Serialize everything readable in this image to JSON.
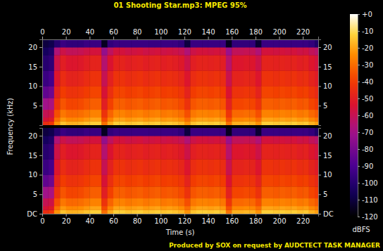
{
  "chart_data": {
    "type": "heatmap",
    "title": "01 Shooting Star.mp3: MPEG 95%",
    "x_label": "Time (s)",
    "y_label": "Frequency (kHz)",
    "annotation": "Produced by SOX on request by AUDCTECT TASK MANAGER",
    "xlim": [
      0,
      233
    ],
    "xticks": [
      0,
      20,
      40,
      60,
      80,
      100,
      120,
      140,
      160,
      180,
      200,
      220
    ],
    "ylim": [
      0,
      22
    ],
    "x_bins": [
      0,
      5,
      10,
      15,
      20,
      25,
      30,
      35,
      40,
      45,
      50,
      55,
      60,
      65,
      70,
      75,
      80,
      85,
      90,
      95,
      100,
      105,
      110,
      115,
      120,
      125,
      130,
      135,
      140,
      145,
      150,
      155,
      160,
      165,
      170,
      175,
      180,
      185,
      190,
      195,
      200,
      205,
      210,
      215,
      220,
      225,
      230,
      233
    ],
    "y_bins": [
      0,
      1,
      2,
      4,
      7,
      10,
      14,
      18,
      20,
      22
    ],
    "panels": [
      {
        "yticks": [
          5,
          10,
          15,
          20
        ],
        "cells": [
          [
            -45,
            -42,
            -23,
            -15,
            -18,
            -18,
            -17,
            -15,
            -13,
            -13,
            -30,
            -19,
            -13,
            -13,
            -15,
            -14,
            -13,
            -15,
            -14,
            -13,
            -15,
            -14,
            -15,
            -17,
            -23,
            -15,
            -13,
            -13,
            -14,
            -13,
            -15,
            -29,
            -18,
            -18,
            -17,
            -18,
            -23,
            -13,
            -13,
            -14,
            -13,
            -14,
            -13,
            -15,
            -14,
            -18,
            -21
          ],
          [
            -55,
            -52,
            -30,
            -22,
            -25,
            -25,
            -24,
            -22,
            -20,
            -20,
            -37,
            -26,
            -20,
            -20,
            -22,
            -21,
            -20,
            -22,
            -21,
            -20,
            -22,
            -21,
            -22,
            -24,
            -30,
            -22,
            -20,
            -20,
            -21,
            -20,
            -22,
            -36,
            -25,
            -25,
            -24,
            -25,
            -30,
            -20,
            -20,
            -21,
            -20,
            -21,
            -20,
            -22,
            -21,
            -25,
            -28
          ],
          [
            -60,
            -58,
            -36,
            -28,
            -31,
            -31,
            -30,
            -28,
            -26,
            -26,
            -43,
            -32,
            -26,
            -26,
            -28,
            -27,
            -26,
            -28,
            -27,
            -26,
            -28,
            -27,
            -28,
            -30,
            -36,
            -28,
            -26,
            -26,
            -27,
            -26,
            -28,
            -42,
            -31,
            -31,
            -30,
            -31,
            -36,
            -26,
            -26,
            -27,
            -26,
            -27,
            -26,
            -28,
            -27,
            -31,
            -34
          ],
          [
            -70,
            -68,
            -43,
            -35,
            -38,
            -38,
            -37,
            -35,
            -33,
            -33,
            -50,
            -39,
            -33,
            -33,
            -35,
            -34,
            -33,
            -35,
            -34,
            -33,
            -35,
            -34,
            -35,
            -37,
            -43,
            -35,
            -33,
            -33,
            -34,
            -33,
            -35,
            -49,
            -38,
            -38,
            -37,
            -38,
            -43,
            -33,
            -33,
            -34,
            -33,
            -34,
            -33,
            -35,
            -34,
            -38,
            -41
          ],
          [
            -85,
            -82,
            -48,
            -40,
            -43,
            -43,
            -42,
            -40,
            -38,
            -38,
            -55,
            -44,
            -38,
            -38,
            -40,
            -39,
            -38,
            -40,
            -39,
            -38,
            -40,
            -39,
            -40,
            -42,
            -48,
            -40,
            -38,
            -38,
            -39,
            -38,
            -40,
            -54,
            -43,
            -43,
            -42,
            -43,
            -48,
            -38,
            -38,
            -39,
            -38,
            -39,
            -38,
            -40,
            -39,
            -43,
            -46
          ],
          [
            -95,
            -92,
            -53,
            -45,
            -48,
            -48,
            -47,
            -45,
            -43,
            -43,
            -60,
            -49,
            -43,
            -43,
            -45,
            -44,
            -43,
            -45,
            -44,
            -43,
            -45,
            -44,
            -45,
            -47,
            -53,
            -45,
            -43,
            -43,
            -44,
            -43,
            -45,
            -59,
            -48,
            -48,
            -47,
            -48,
            -53,
            -43,
            -43,
            -44,
            -43,
            -44,
            -43,
            -45,
            -44,
            -48,
            -51
          ],
          [
            -100,
            -98,
            -58,
            -50,
            -53,
            -53,
            -52,
            -50,
            -48,
            -48,
            -65,
            -54,
            -48,
            -48,
            -50,
            -49,
            -48,
            -50,
            -49,
            -48,
            -50,
            -49,
            -50,
            -52,
            -58,
            -50,
            -48,
            -48,
            -49,
            -48,
            -50,
            -64,
            -53,
            -53,
            -52,
            -53,
            -58,
            -48,
            -48,
            -49,
            -48,
            -49,
            -48,
            -50,
            -49,
            -53,
            -56
          ],
          [
            -105,
            -102,
            -66,
            -58,
            -61,
            -61,
            -60,
            -58,
            -56,
            -56,
            -73,
            -62,
            -56,
            -56,
            -58,
            -57,
            -56,
            -58,
            -57,
            -56,
            -58,
            -57,
            -58,
            -60,
            -66,
            -58,
            -56,
            -56,
            -57,
            -56,
            -58,
            -72,
            -61,
            -61,
            -60,
            -61,
            -66,
            -56,
            -56,
            -57,
            -56,
            -57,
            -56,
            -58,
            -57,
            -61,
            -64
          ],
          [
            -110,
            -108,
            -100,
            -95,
            -97,
            -97,
            -97,
            -95,
            -95,
            -95,
            -115,
            -97,
            -95,
            -95,
            -95,
            -95,
            -95,
            -95,
            -95,
            -95,
            -95,
            -95,
            -95,
            -97,
            -110,
            -95,
            -95,
            -95,
            -95,
            -95,
            -95,
            -115,
            -97,
            -97,
            -97,
            -97,
            -112,
            -95,
            -95,
            -95,
            -95,
            -95,
            -95,
            -95,
            -95,
            -97,
            -102
          ]
        ]
      },
      {
        "yticks": [
          {
            "value": 0,
            "label": "DC"
          },
          5,
          10,
          15,
          20
        ],
        "cells": [
          [
            -45,
            -42,
            -23,
            -15,
            -18,
            -18,
            -17,
            -15,
            -13,
            -13,
            -30,
            -19,
            -13,
            -13,
            -15,
            -14,
            -13,
            -15,
            -14,
            -13,
            -15,
            -14,
            -15,
            -17,
            -23,
            -15,
            -13,
            -13,
            -14,
            -13,
            -15,
            -29,
            -18,
            -18,
            -17,
            -18,
            -23,
            -13,
            -13,
            -14,
            -13,
            -14,
            -13,
            -15,
            -14,
            -18,
            -21
          ],
          [
            -55,
            -52,
            -30,
            -22,
            -25,
            -25,
            -24,
            -22,
            -20,
            -20,
            -37,
            -26,
            -20,
            -20,
            -22,
            -21,
            -20,
            -22,
            -21,
            -20,
            -22,
            -21,
            -22,
            -24,
            -30,
            -22,
            -20,
            -20,
            -21,
            -20,
            -22,
            -36,
            -25,
            -25,
            -24,
            -25,
            -30,
            -20,
            -20,
            -21,
            -20,
            -21,
            -20,
            -22,
            -21,
            -25,
            -28
          ],
          [
            -60,
            -58,
            -36,
            -28,
            -31,
            -31,
            -30,
            -28,
            -26,
            -26,
            -43,
            -32,
            -26,
            -26,
            -28,
            -27,
            -26,
            -28,
            -27,
            -26,
            -28,
            -27,
            -28,
            -30,
            -36,
            -28,
            -26,
            -26,
            -27,
            -26,
            -28,
            -42,
            -31,
            -31,
            -30,
            -31,
            -36,
            -26,
            -26,
            -27,
            -26,
            -27,
            -26,
            -28,
            -27,
            -31,
            -34
          ],
          [
            -70,
            -68,
            -43,
            -35,
            -38,
            -38,
            -37,
            -35,
            -33,
            -33,
            -50,
            -39,
            -33,
            -33,
            -35,
            -34,
            -33,
            -35,
            -34,
            -33,
            -35,
            -34,
            -35,
            -37,
            -43,
            -35,
            -33,
            -33,
            -34,
            -33,
            -35,
            -49,
            -38,
            -38,
            -37,
            -38,
            -43,
            -33,
            -33,
            -34,
            -33,
            -34,
            -33,
            -35,
            -34,
            -38,
            -41
          ],
          [
            -85,
            -82,
            -48,
            -40,
            -43,
            -43,
            -42,
            -40,
            -38,
            -38,
            -55,
            -44,
            -38,
            -38,
            -40,
            -39,
            -38,
            -40,
            -39,
            -38,
            -40,
            -39,
            -40,
            -42,
            -48,
            -40,
            -38,
            -38,
            -39,
            -38,
            -40,
            -54,
            -43,
            -43,
            -42,
            -43,
            -48,
            -38,
            -38,
            -39,
            -38,
            -39,
            -38,
            -40,
            -39,
            -43,
            -46
          ],
          [
            -95,
            -92,
            -53,
            -45,
            -48,
            -48,
            -47,
            -45,
            -43,
            -43,
            -60,
            -49,
            -43,
            -43,
            -45,
            -44,
            -43,
            -45,
            -44,
            -43,
            -45,
            -44,
            -45,
            -47,
            -53,
            -45,
            -43,
            -43,
            -44,
            -43,
            -45,
            -59,
            -48,
            -48,
            -47,
            -48,
            -53,
            -43,
            -43,
            -44,
            -43,
            -44,
            -43,
            -45,
            -44,
            -48,
            -51
          ],
          [
            -100,
            -98,
            -58,
            -50,
            -53,
            -53,
            -52,
            -50,
            -48,
            -48,
            -65,
            -54,
            -48,
            -48,
            -50,
            -49,
            -48,
            -50,
            -49,
            -48,
            -50,
            -49,
            -50,
            -52,
            -58,
            -50,
            -48,
            -48,
            -49,
            -48,
            -50,
            -64,
            -53,
            -53,
            -52,
            -53,
            -58,
            -48,
            -48,
            -49,
            -48,
            -49,
            -48,
            -50,
            -49,
            -53,
            -56
          ],
          [
            -105,
            -102,
            -66,
            -58,
            -61,
            -61,
            -60,
            -58,
            -56,
            -56,
            -73,
            -62,
            -56,
            -56,
            -58,
            -57,
            -56,
            -58,
            -57,
            -56,
            -58,
            -57,
            -58,
            -60,
            -66,
            -58,
            -56,
            -56,
            -57,
            -56,
            -58,
            -72,
            -61,
            -61,
            -60,
            -61,
            -66,
            -56,
            -56,
            -57,
            -56,
            -57,
            -56,
            -58,
            -57,
            -61,
            -64
          ],
          [
            -110,
            -108,
            -100,
            -95,
            -97,
            -97,
            -97,
            -95,
            -95,
            -95,
            -115,
            -97,
            -95,
            -95,
            -95,
            -95,
            -95,
            -95,
            -95,
            -95,
            -95,
            -95,
            -95,
            -97,
            -110,
            -95,
            -95,
            -95,
            -95,
            -95,
            -95,
            -115,
            -97,
            -97,
            -97,
            -97,
            -112,
            -95,
            -95,
            -95,
            -95,
            -95,
            -95,
            -95,
            -95,
            -97,
            -102
          ]
        ]
      }
    ],
    "colorbar": {
      "range": [
        -120,
        0
      ],
      "ticks": [
        {
          "value": 0,
          "label": "+0"
        },
        -10,
        -20,
        -30,
        -40,
        -50,
        -60,
        -70,
        -80,
        -90,
        -100,
        -110,
        -120
      ],
      "label": "dBFS"
    }
  }
}
